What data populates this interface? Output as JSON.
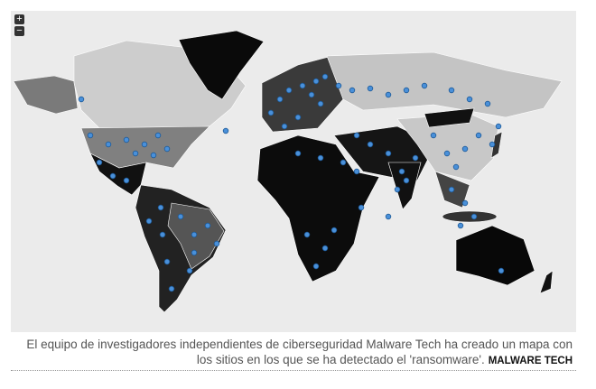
{
  "map": {
    "zoom_in": "+",
    "zoom_out": "−"
  },
  "caption": {
    "text": "El equipo de investigadores independientes de ciberseguridad Malware Tech ha creado un mapa con los sitios en los que se ha detectado el 'ransomware'.",
    "credit": "MALWARE TECH"
  }
}
